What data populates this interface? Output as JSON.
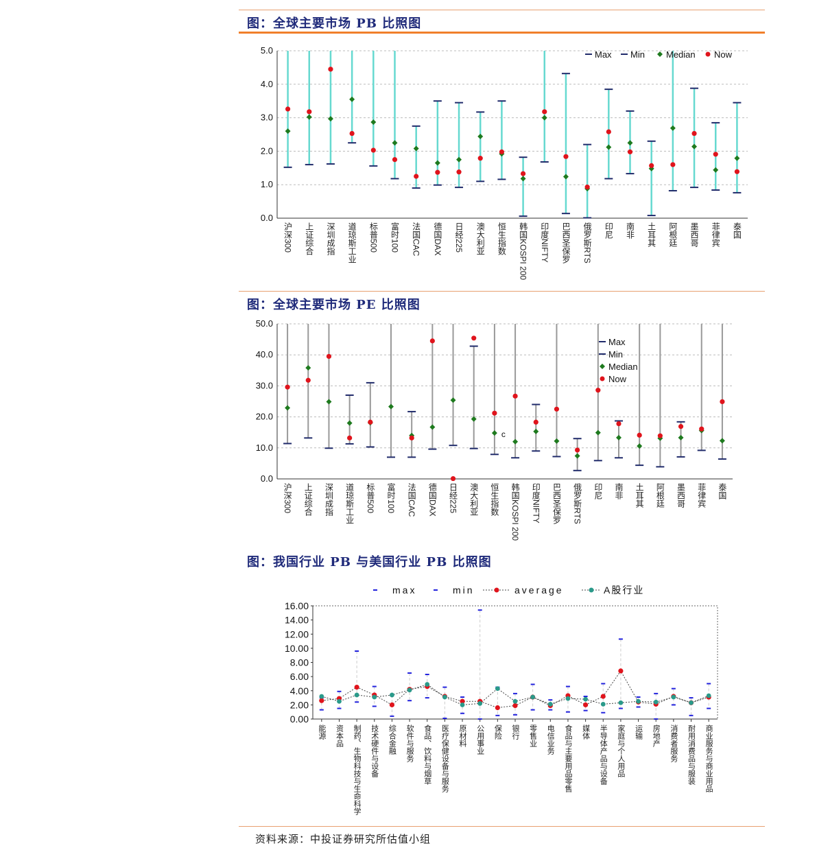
{
  "charts": {
    "pb": {
      "title": "图：全球主要市场 PB 比照图"
    },
    "pe": {
      "title": "图：全球主要市场 PE 比照图"
    },
    "ind": {
      "title": "图：我国行业 PB 与美国行业 PB 比照图"
    }
  },
  "footer": "资料来源：中投证券研究所估值小组",
  "colors": {
    "title": "#1f2a7a",
    "rule_orange": "#f07f2a",
    "teal": "#66d9d0",
    "gray_bar": "#999999",
    "navy": "#1f2a6a",
    "green": "#1e7a1e",
    "red": "#e0141c",
    "blue_tick": "#2222dd",
    "ind_teal": "#2a9a8a"
  },
  "chart_data": [
    {
      "type": "scatter",
      "title": "全球主要市场 PB 比照图",
      "ylim": [
        0,
        5
      ],
      "yticks": [
        "0.0",
        "1.0",
        "2.0",
        "3.0",
        "4.0",
        "5.0"
      ],
      "legend": [
        "Max",
        "Min",
        "Median",
        "Now"
      ],
      "legend_position": "top-right",
      "categories": [
        "沪深300",
        "上证综合",
        "深圳成指",
        "道琼斯工业",
        "标普500",
        "富时100",
        "法国CAC",
        "德国DAX",
        "日经225",
        "澳大利亚",
        "恒生指数",
        "韩国KOSPI 200",
        "印度NIFTY",
        "巴西圣保罗",
        "俄罗斯RTS",
        "印尼",
        "南非",
        "土耳其",
        "阿根廷",
        "墨西哥",
        "菲律宾",
        "泰国"
      ],
      "series": [
        {
          "name": "Max",
          "values": [
            5.0,
            5.0,
            5.0,
            5.0,
            5.0,
            5.0,
            2.75,
            3.5,
            3.45,
            3.17,
            3.5,
            1.82,
            5.0,
            4.32,
            2.2,
            3.85,
            3.2,
            2.3,
            5.0,
            3.88,
            2.85,
            3.45
          ]
        },
        {
          "name": "Min",
          "values": [
            1.52,
            1.6,
            1.62,
            2.25,
            1.56,
            1.18,
            0.9,
            0.99,
            0.92,
            1.1,
            1.16,
            0.06,
            1.68,
            0.14,
            0.01,
            1.18,
            1.33,
            0.08,
            0.82,
            0.92,
            0.84,
            0.76
          ]
        },
        {
          "name": "Median",
          "values": [
            2.6,
            3.02,
            2.97,
            3.55,
            2.87,
            2.25,
            2.08,
            1.65,
            1.75,
            2.44,
            1.92,
            1.18,
            3.0,
            1.24,
            0.88,
            2.12,
            2.25,
            1.48,
            2.69,
            2.14,
            1.44,
            1.79
          ]
        },
        {
          "name": "Now",
          "values": [
            3.26,
            3.18,
            4.45,
            2.53,
            2.03,
            1.75,
            1.25,
            1.37,
            1.38,
            1.79,
            1.98,
            1.33,
            3.18,
            1.84,
            0.93,
            2.58,
            1.98,
            1.57,
            1.6,
            2.53,
            1.91,
            1.39
          ]
        }
      ]
    },
    {
      "type": "scatter",
      "title": "全球主要市场 PE 比照图",
      "ylim": [
        0,
        50
      ],
      "yticks": [
        "0.0",
        "10.0",
        "20.0",
        "30.0",
        "40.0",
        "50.0"
      ],
      "legend": [
        "Max",
        "Min",
        "Median",
        "Now"
      ],
      "legend_position": "top-right",
      "annotation": "c",
      "categories": [
        "沪深300",
        "上证综合",
        "深圳成指",
        "道琼斯工业",
        "标普500",
        "富时100",
        "法国CAC",
        "德国DAX",
        "日经225",
        "澳大利亚",
        "恒生指数",
        "韩国KOSPI 200",
        "印度NIFTY",
        "巴西圣保罗",
        "俄罗斯RTS",
        "印尼",
        "南非",
        "土耳其",
        "阿根廷",
        "墨西哥",
        "菲律宾",
        "泰国"
      ],
      "series": [
        {
          "name": "Max",
          "values": [
            50,
            50,
            50,
            27,
            31,
            50,
            21.7,
            50,
            50,
            42.8,
            50,
            50,
            24,
            50,
            13,
            50,
            18.7,
            50,
            50,
            18.4,
            50,
            50
          ]
        },
        {
          "name": "Min",
          "values": [
            11.4,
            13.2,
            9.9,
            11.3,
            10.3,
            7,
            7,
            9.6,
            10.8,
            9.8,
            7.9,
            6.8,
            9,
            7.2,
            2.7,
            5.9,
            6.8,
            4.4,
            3.9,
            7.1,
            9.2,
            6.4
          ]
        },
        {
          "name": "Median",
          "values": [
            22.9,
            35.8,
            24.9,
            18,
            18.1,
            23.3,
            14,
            16.7,
            25.4,
            19.3,
            14.8,
            12,
            15.3,
            12.2,
            7.4,
            14.9,
            13.3,
            10.6,
            13.1,
            13.3,
            15.6,
            12.3
          ]
        },
        {
          "name": "Now",
          "values": [
            29.6,
            31.8,
            39.5,
            13.2,
            18.3,
            null,
            13.2,
            44.5,
            0.1,
            45.4,
            21.2,
            26.7,
            18.3,
            22.5,
            9.3,
            28.6,
            17.8,
            14.1,
            13.9,
            16.9,
            16.1,
            24.9
          ]
        }
      ]
    },
    {
      "type": "line",
      "title": "我国行业 PB 与美国行业 PB 比照图",
      "ylim": [
        0,
        16
      ],
      "yticks": [
        "0.00",
        "2.00",
        "4.00",
        "6.00",
        "8.00",
        "10.00",
        "12.00",
        "14.00",
        "16.00"
      ],
      "legend": [
        "max",
        "min",
        "average",
        "A股行业"
      ],
      "legend_position": "top",
      "categories": [
        "能源",
        "资本品",
        "制药、生物科技与生命科学",
        "技术硬件与设备",
        "综合金融",
        "软件与服务",
        "食品、饮料与烟草",
        "医疗保健设备与服务",
        "原材料",
        "公用事业",
        "保险",
        "银行",
        "零售业",
        "电信业务",
        "食品与主要用品零售",
        "媒体",
        "半导体产品与设备",
        "家庭与个人用品",
        "运输",
        "房地产",
        "消费者服务",
        "耐用消费品与服装",
        "商业服务与商业用品"
      ],
      "series": [
        {
          "name": "max",
          "values": [
            3.0,
            3.9,
            9.6,
            4.6,
            3.4,
            6.5,
            6.3,
            4.5,
            3.1,
            15.4,
            4.5,
            3.6,
            4.9,
            2.7,
            4.6,
            3.2,
            5.0,
            11.3,
            3.1,
            3.6,
            4.3,
            3.0,
            5.0
          ]
        },
        {
          "name": "min",
          "values": [
            1.3,
            1.5,
            2.4,
            1.8,
            0.4,
            2.6,
            3.0,
            0.1,
            0.8,
            0.0,
            0.5,
            0.6,
            1.3,
            1.3,
            1.0,
            1.2,
            0.9,
            1.5,
            1.7,
            0.0,
            2.0,
            0.5,
            1.5
          ]
        },
        {
          "name": "average",
          "values": [
            2.6,
            2.9,
            4.5,
            3.4,
            2.0,
            4.2,
            4.6,
            3.2,
            2.5,
            2.5,
            1.6,
            1.9,
            3.1,
            1.9,
            3.3,
            2.0,
            3.2,
            6.8,
            2.4,
            2.1,
            3.2,
            2.3,
            3.1
          ]
        },
        {
          "name": "A股行业",
          "values": [
            3.2,
            2.5,
            3.4,
            3.1,
            3.4,
            4.1,
            4.9,
            3.1,
            2.0,
            2.2,
            4.3,
            2.5,
            3.1,
            2.1,
            2.9,
            2.8,
            2.1,
            2.3,
            2.5,
            2.4,
            3.1,
            2.3,
            3.3
          ]
        }
      ]
    }
  ]
}
